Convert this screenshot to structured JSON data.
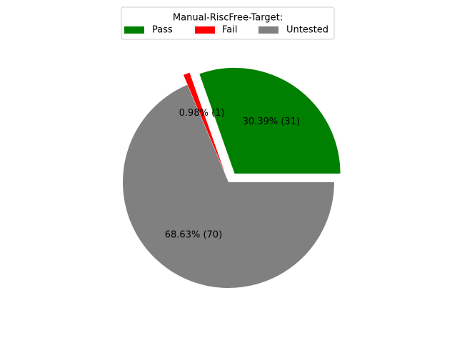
{
  "chart_data": {
    "type": "pie",
    "legend_title": "Manual-RiscFree-Target:",
    "legend_position": "top-center",
    "slices": [
      {
        "name": "Pass",
        "value": 31,
        "label": "30.39%  (31)",
        "color": "#008000",
        "exploded": true
      },
      {
        "name": "Fail",
        "value": 1,
        "label": "0.98%  (1)",
        "color": "#ff0000",
        "exploded": true
      },
      {
        "name": "Untested",
        "value": 70,
        "label": "68.63%  (70)",
        "color": "#808080",
        "exploded": false
      }
    ]
  }
}
